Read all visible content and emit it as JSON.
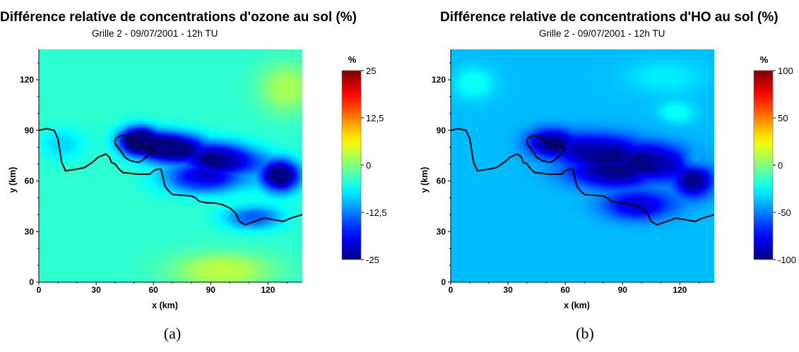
{
  "chart_data": [
    {
      "type": "heatmap",
      "title": "Différence relative de concentrations d'ozone au sol (%)",
      "subtitle": "Grille 2 - 09/07/2001 - 12h TU",
      "xlabel": "x (km)",
      "ylabel": "y (km)",
      "xlim": [
        0,
        138
      ],
      "ylim": [
        0,
        138
      ],
      "xticks": [
        0,
        30,
        60,
        90,
        120
      ],
      "yticks": [
        0,
        30,
        60,
        90,
        120
      ],
      "colorbar": {
        "title": "%",
        "min": -25,
        "max": 25,
        "tick_values": [
          25,
          12.5,
          0,
          -12.5,
          -25
        ],
        "tick_labels": [
          "25",
          "12,5",
          "0",
          "-12,5",
          "-25"
        ]
      },
      "field": {
        "background": -4,
        "features": [
          {
            "x": 52,
            "y": 84,
            "rx": 15,
            "ry": 12,
            "value": -25
          },
          {
            "x": 70,
            "y": 80,
            "rx": 24,
            "ry": 13,
            "value": -21
          },
          {
            "x": 97,
            "y": 73,
            "rx": 27,
            "ry": 14,
            "value": -19
          },
          {
            "x": 127,
            "y": 63,
            "rx": 15,
            "ry": 14,
            "value": -24
          },
          {
            "x": 85,
            "y": 60,
            "rx": 30,
            "ry": 12,
            "value": -14
          },
          {
            "x": 112,
            "y": 38,
            "rx": 22,
            "ry": 10,
            "value": -14
          },
          {
            "x": 96,
            "y": 7,
            "rx": 40,
            "ry": 16,
            "value": 3
          },
          {
            "x": 130,
            "y": 115,
            "rx": 22,
            "ry": 22,
            "value": 2
          },
          {
            "x": 12,
            "y": 82,
            "rx": 16,
            "ry": 14,
            "value": -8
          }
        ]
      },
      "caption": "(a)"
    },
    {
      "type": "heatmap",
      "title": "Différence relative de concentrations d'HO au sol (%)",
      "subtitle": "Grille 2 - 09/07/2001 - 12h TU",
      "xlabel": "x (km)",
      "ylabel": "y (km)",
      "xlim": [
        0,
        138
      ],
      "ylim": [
        0,
        138
      ],
      "xticks": [
        0,
        30,
        60,
        90,
        120
      ],
      "yticks": [
        0,
        30,
        60,
        90,
        120
      ],
      "colorbar": {
        "title": "%",
        "min": -100,
        "max": 100,
        "tick_values": [
          100,
          50,
          0,
          -50,
          -100
        ],
        "tick_labels": [
          "100",
          "50",
          "0",
          "-50",
          "-100"
        ]
      },
      "field": {
        "background": -38,
        "features": [
          {
            "x": 52,
            "y": 83,
            "rx": 18,
            "ry": 12,
            "value": -85
          },
          {
            "x": 78,
            "y": 78,
            "rx": 30,
            "ry": 16,
            "value": -76
          },
          {
            "x": 106,
            "y": 72,
            "rx": 28,
            "ry": 16,
            "value": -74
          },
          {
            "x": 128,
            "y": 60,
            "rx": 14,
            "ry": 14,
            "value": -86
          },
          {
            "x": 98,
            "y": 45,
            "rx": 26,
            "ry": 12,
            "value": -80
          },
          {
            "x": 82,
            "y": 64,
            "rx": 32,
            "ry": 12,
            "value": -68
          },
          {
            "x": 128,
            "y": 72,
            "rx": 6,
            "ry": 6,
            "value": -5
          },
          {
            "x": 118,
            "y": 100,
            "rx": 14,
            "ry": 10,
            "value": -22
          },
          {
            "x": 12,
            "y": 118,
            "rx": 16,
            "ry": 14,
            "value": -22
          },
          {
            "x": 112,
            "y": 122,
            "rx": 30,
            "ry": 14,
            "value": -28
          }
        ]
      },
      "caption": "(b)"
    }
  ],
  "coastline": [
    [
      0,
      90
    ],
    [
      4,
      91
    ],
    [
      8,
      90
    ],
    [
      10,
      85
    ],
    [
      11,
      78
    ],
    [
      12,
      71
    ],
    [
      14,
      66
    ],
    [
      20,
      67
    ],
    [
      24,
      68
    ],
    [
      28,
      71
    ],
    [
      31,
      74
    ],
    [
      35,
      76
    ],
    [
      37,
      74
    ],
    [
      38,
      71
    ],
    [
      40,
      70
    ],
    [
      42,
      67
    ],
    [
      44,
      65
    ],
    [
      52,
      64
    ],
    [
      58,
      64
    ],
    [
      60,
      66
    ],
    [
      62,
      67
    ],
    [
      64,
      67
    ],
    [
      65,
      62
    ],
    [
      66,
      57
    ],
    [
      68,
      54
    ],
    [
      70,
      52
    ],
    [
      80,
      51
    ],
    [
      82,
      50
    ],
    [
      84,
      48
    ],
    [
      88,
      47
    ],
    [
      92,
      47
    ],
    [
      96,
      46
    ],
    [
      100,
      44
    ],
    [
      103,
      41
    ],
    [
      105,
      36
    ],
    [
      108,
      34
    ],
    [
      113,
      36
    ],
    [
      118,
      38
    ],
    [
      123,
      37
    ],
    [
      128,
      36
    ],
    [
      132,
      38
    ],
    [
      138,
      40
    ]
  ],
  "lake": [
    [
      40,
      85
    ],
    [
      43,
      87
    ],
    [
      47,
      87
    ],
    [
      48,
      85
    ],
    [
      50,
      83
    ],
    [
      52,
      83
    ],
    [
      55,
      81
    ],
    [
      58,
      80
    ],
    [
      60,
      79
    ],
    [
      58,
      76
    ],
    [
      56,
      74
    ],
    [
      54,
      72
    ],
    [
      52,
      71
    ],
    [
      48,
      72
    ],
    [
      45,
      74
    ],
    [
      44,
      76
    ],
    [
      42,
      79
    ],
    [
      40,
      82
    ],
    [
      40,
      85
    ]
  ]
}
